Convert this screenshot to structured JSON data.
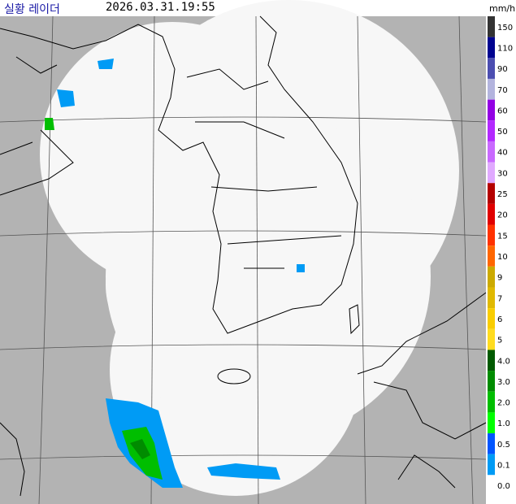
{
  "header": {
    "title": "실황 레이더",
    "timestamp": "2026.03.31.19:55",
    "unit": "mm/h"
  },
  "legend": [
    {
      "label": "150",
      "color": "#333333"
    },
    {
      "label": "110",
      "color": "#000390"
    },
    {
      "label": "90",
      "color": "#4c4eb1"
    },
    {
      "label": "70",
      "color": "#b3b4de"
    },
    {
      "label": "60",
      "color": "#9300e4"
    },
    {
      "label": "50",
      "color": "#b329ff"
    },
    {
      "label": "40",
      "color": "#c969ff"
    },
    {
      "label": "30",
      "color": "#e0a9ff"
    },
    {
      "label": "25",
      "color": "#b40000"
    },
    {
      "label": "20",
      "color": "#e00000"
    },
    {
      "label": "15",
      "color": "#ff3200"
    },
    {
      "label": "10",
      "color": "#ff6600"
    },
    {
      "label": "9",
      "color": "#ccaa00"
    },
    {
      "label": "7",
      "color": "#e0b900"
    },
    {
      "label": "6",
      "color": "#f9cd00"
    },
    {
      "label": "5",
      "color": "#ffdc1f"
    },
    {
      "label": "4.0",
      "color": "#005a00"
    },
    {
      "label": "3.0",
      "color": "#008c00"
    },
    {
      "label": "2.0",
      "color": "#00be00"
    },
    {
      "label": "1.0",
      "color": "#00ff00"
    },
    {
      "label": "0.5",
      "color": "#0055ff"
    },
    {
      "label": "0.1",
      "color": "#009bf5"
    },
    {
      "label": "0.0",
      "color": "#ffffff"
    }
  ]
}
